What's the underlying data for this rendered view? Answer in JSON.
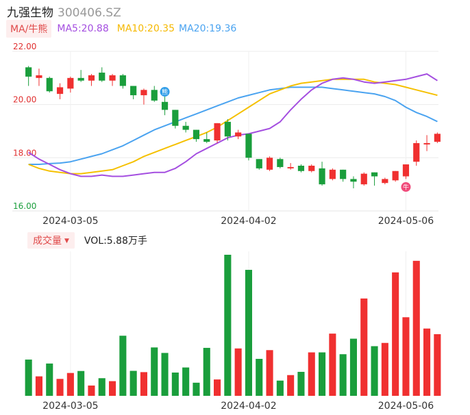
{
  "header": {
    "name": "九强生物",
    "code": "300406.SZ"
  },
  "ma_bar": {
    "selector_label": "MA/牛熊",
    "ma5": "MA5:20.88",
    "ma10": "MA10:20.35",
    "ma20": "MA20:19.36"
  },
  "volume_bar": {
    "selector_label": "成交量",
    "value_text": "VOL:5.88万手"
  },
  "markers": {
    "bear_glyph": "熊",
    "bull_glyph": "牛"
  },
  "colors": {
    "up": "#f03030",
    "down": "#1a9e3c",
    "ma5": "#a44ee0",
    "ma10": "#f5c000",
    "ma20": "#4aa3f0"
  },
  "chart_data": [
    {
      "type": "candlestick",
      "ylim": [
        16.0,
        22.0
      ],
      "yticks": [
        "22.00",
        "20.00",
        "18.00",
        "16.00"
      ],
      "xticks": [
        {
          "index": 4,
          "label": "2024-03-05"
        },
        {
          "index": 21,
          "label": "2024-04-02"
        },
        {
          "index": 36,
          "label": "2024-05-06"
        }
      ],
      "ohlc": [
        [
          21.4,
          21.45,
          20.7,
          21.05
        ],
        [
          21.0,
          21.35,
          20.7,
          21.1
        ],
        [
          21.0,
          21.05,
          20.45,
          20.5
        ],
        [
          20.4,
          20.8,
          20.2,
          20.65
        ],
        [
          20.6,
          21.05,
          20.45,
          21.0
        ],
        [
          21.0,
          21.3,
          20.85,
          20.9
        ],
        [
          20.9,
          21.15,
          20.7,
          21.1
        ],
        [
          21.2,
          21.4,
          20.85,
          20.9
        ],
        [
          20.9,
          21.15,
          20.7,
          21.1
        ],
        [
          21.1,
          21.15,
          20.6,
          20.7
        ],
        [
          20.7,
          20.7,
          20.2,
          20.35
        ],
        [
          20.35,
          20.6,
          20.0,
          20.55
        ],
        [
          20.55,
          20.7,
          20.1,
          20.15
        ],
        [
          20.1,
          20.3,
          19.6,
          19.8
        ],
        [
          19.8,
          19.8,
          19.1,
          19.2
        ],
        [
          19.2,
          19.35,
          18.95,
          19.05
        ],
        [
          19.05,
          19.05,
          18.6,
          18.7
        ],
        [
          18.7,
          18.95,
          18.55,
          18.6
        ],
        [
          18.65,
          19.3,
          18.55,
          19.3
        ],
        [
          19.35,
          19.45,
          18.65,
          18.8
        ],
        [
          18.8,
          19.05,
          18.7,
          18.95
        ],
        [
          18.9,
          18.9,
          17.9,
          18.0
        ],
        [
          17.95,
          17.95,
          17.55,
          17.6
        ],
        [
          17.55,
          18.05,
          17.5,
          18.0
        ],
        [
          17.95,
          18.0,
          17.6,
          17.65
        ],
        [
          17.6,
          17.8,
          17.55,
          17.65
        ],
        [
          17.7,
          17.75,
          17.45,
          17.5
        ],
        [
          17.5,
          17.75,
          17.45,
          17.7
        ],
        [
          17.6,
          17.85,
          16.95,
          17.0
        ],
        [
          17.2,
          17.6,
          17.15,
          17.55
        ],
        [
          17.55,
          17.55,
          17.1,
          17.2
        ],
        [
          17.2,
          17.3,
          16.85,
          17.1
        ],
        [
          17.0,
          17.45,
          16.95,
          17.4
        ],
        [
          17.45,
          17.45,
          16.95,
          17.3
        ],
        [
          17.05,
          17.25,
          17.0,
          17.2
        ],
        [
          17.15,
          17.5,
          17.1,
          17.5
        ],
        [
          17.3,
          17.75,
          17.2,
          17.75
        ],
        [
          17.85,
          18.65,
          17.7,
          18.55
        ],
        [
          18.5,
          18.85,
          18.25,
          18.55
        ],
        [
          18.6,
          18.95,
          18.55,
          18.9
        ]
      ],
      "ma5": [
        18.2,
        17.95,
        17.75,
        17.55,
        17.4,
        17.3,
        17.3,
        17.35,
        17.3,
        17.3,
        17.35,
        17.4,
        17.45,
        17.45,
        17.6,
        17.85,
        18.15,
        18.35,
        18.55,
        18.75,
        18.85,
        18.9,
        19.0,
        19.1,
        19.35,
        19.8,
        20.2,
        20.55,
        20.8,
        20.95,
        21.0,
        20.95,
        20.85,
        20.8,
        20.85,
        20.9,
        20.95,
        21.05,
        21.15,
        20.9
      ],
      "ma10": [
        17.75,
        17.6,
        17.5,
        17.45,
        17.4,
        17.4,
        17.45,
        17.5,
        17.55,
        17.7,
        17.85,
        18.05,
        18.2,
        18.35,
        18.5,
        18.65,
        18.8,
        18.95,
        19.15,
        19.4,
        19.65,
        19.9,
        20.15,
        20.4,
        20.55,
        20.7,
        20.8,
        20.85,
        20.9,
        20.95,
        20.95,
        20.95,
        20.95,
        20.85,
        20.8,
        20.75,
        20.65,
        20.55,
        20.45,
        20.35
      ],
      "ma20": [
        17.75,
        17.75,
        17.78,
        17.8,
        17.85,
        17.95,
        18.05,
        18.15,
        18.3,
        18.45,
        18.65,
        18.85,
        19.05,
        19.2,
        19.35,
        19.5,
        19.65,
        19.8,
        19.95,
        20.1,
        20.25,
        20.35,
        20.45,
        20.55,
        20.6,
        20.65,
        20.65,
        20.65,
        20.65,
        20.6,
        20.55,
        20.5,
        20.45,
        20.4,
        20.3,
        20.15,
        19.9,
        19.7,
        19.55,
        19.36
      ]
    },
    {
      "type": "bar",
      "ylim": [
        0,
        100
      ],
      "values": [
        25.7,
        13.8,
        22.9,
        12.0,
        16.2,
        17.6,
        7.3,
        12.5,
        10.4,
        42.6,
        17.7,
        16.8,
        34.3,
        30.4,
        16.5,
        20.1,
        9.3,
        34.0,
        11.6,
        100.0,
        33.6,
        89.3,
        26.2,
        32.4,
        10.8,
        14.7,
        17.0,
        30.8,
        30.8,
        44.1,
        29.5,
        40.5,
        69.0,
        35.2,
        37.5,
        87.5,
        55.7,
        95.7,
        47.7,
        43.7
      ]
    }
  ]
}
